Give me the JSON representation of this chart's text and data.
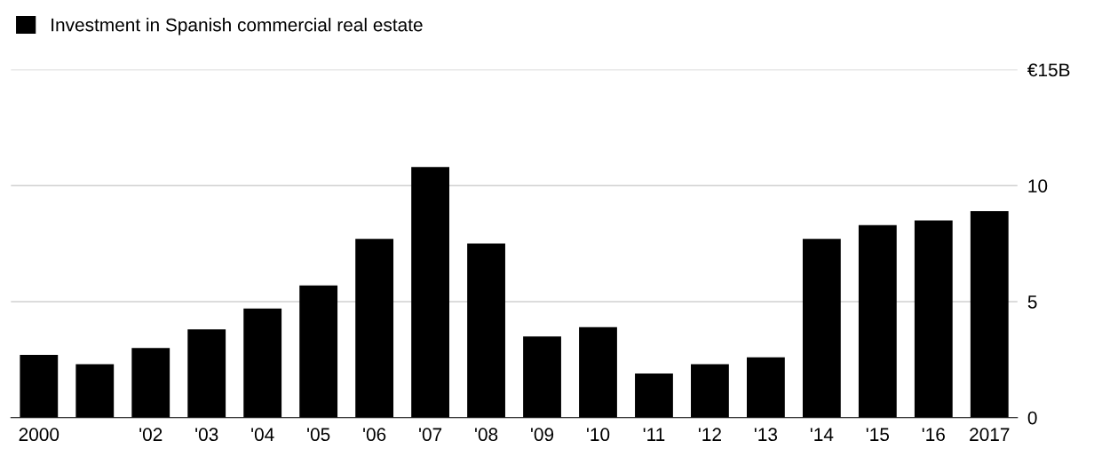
{
  "chart_data": {
    "type": "bar",
    "categories": [
      "2000",
      null,
      "'02",
      "'03",
      "'04",
      "'05",
      "'06",
      "'07",
      "'08",
      "'09",
      "'10",
      "'11",
      "'12",
      "'13",
      "'14",
      "'15",
      "'16",
      "2017"
    ],
    "series": [
      {
        "name": "Investment in Spanish commercial real estate",
        "color": "#000000",
        "values": [
          2.7,
          2.3,
          3.0,
          3.8,
          4.7,
          5.7,
          7.7,
          10.8,
          7.5,
          3.5,
          3.9,
          1.9,
          2.3,
          2.6,
          7.7,
          8.3,
          8.5,
          8.9
        ]
      }
    ],
    "ylim": [
      0,
      15
    ],
    "yticks": [
      0,
      5,
      10,
      {
        "value": 15,
        "label": "€15B"
      }
    ],
    "grid": "y",
    "legend": "top left"
  }
}
